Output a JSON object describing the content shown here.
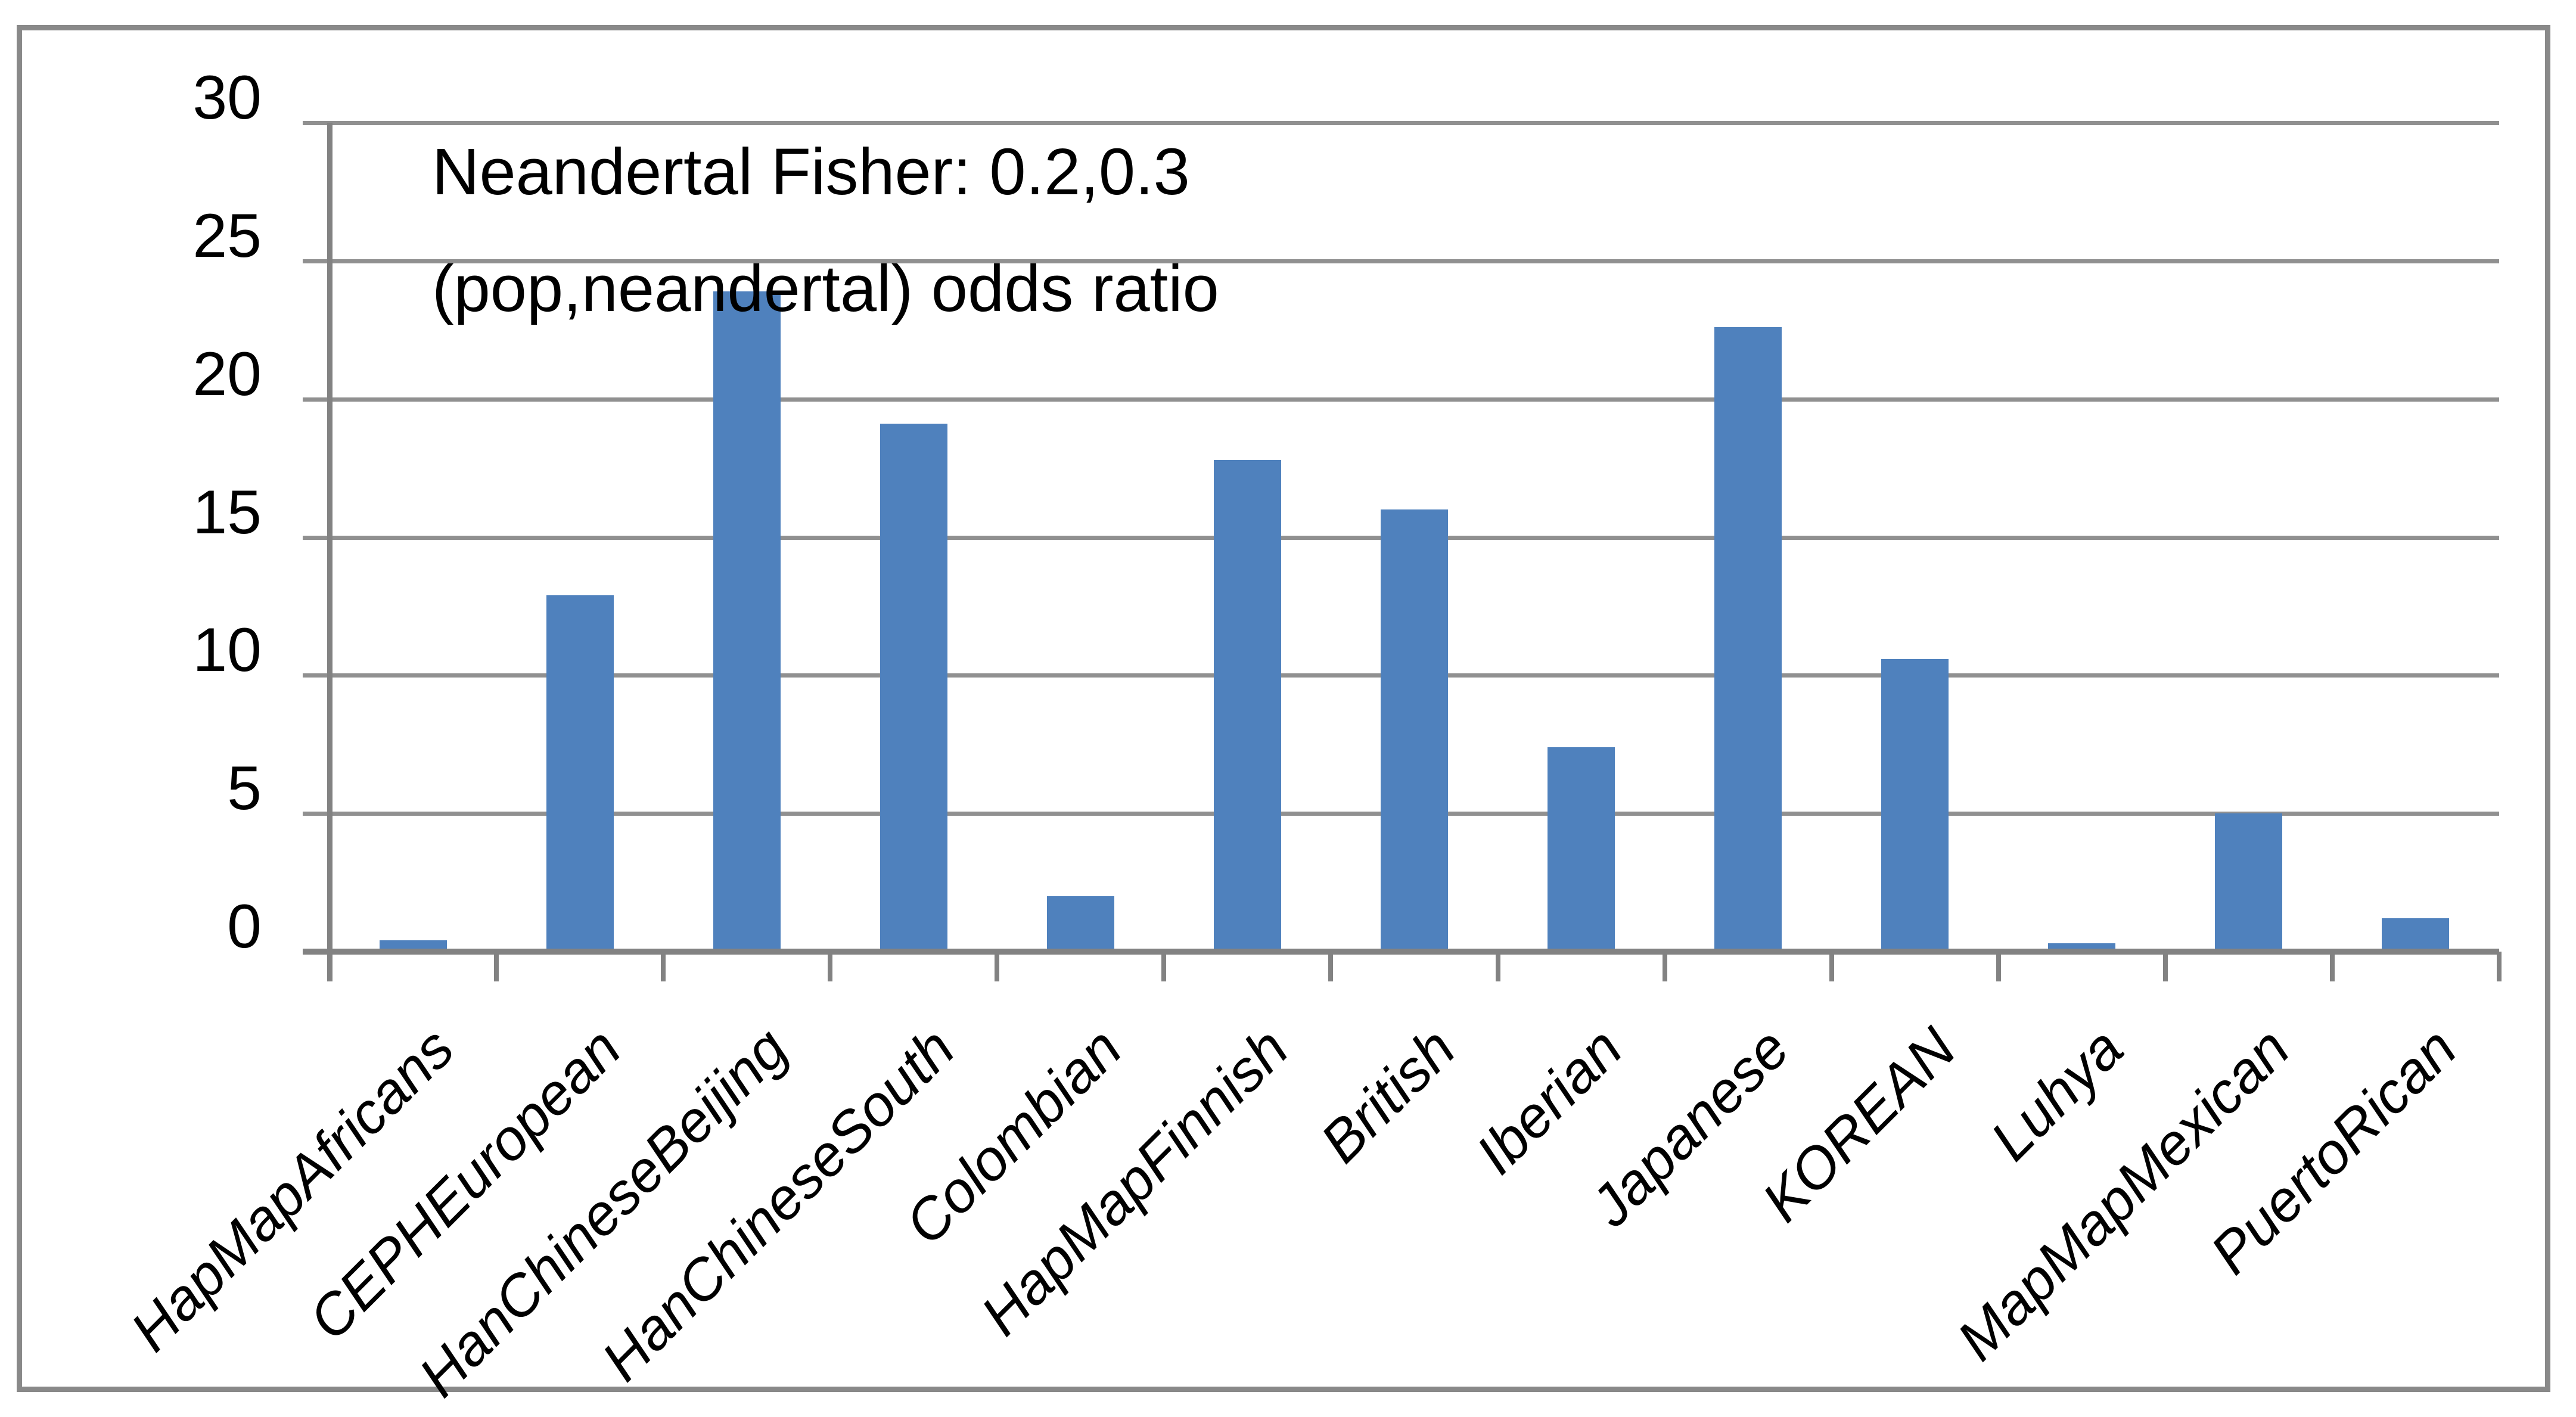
{
  "chart_data": {
    "type": "bar",
    "title_line1": "Neandertal Fisher: 0.2,0.3",
    "title_line2": "(pop,neandertal) odds ratio",
    "categories": [
      "HapMapAfricans",
      "CEPHEuropean",
      "HanChineseBeijing",
      "HanChineseSouth",
      "Colombian",
      "HapMapFinnish",
      "British",
      "Iberian",
      "Japanese",
      "KOREAN",
      "Luhya",
      "MapMapMexican",
      "PuertoRican"
    ],
    "values": [
      0.4,
      12.9,
      23.9,
      19.1,
      2.0,
      17.8,
      16.0,
      7.4,
      22.6,
      10.6,
      0.3,
      5.0,
      1.2
    ],
    "y_tick_labels": [
      "0",
      "5",
      "10",
      "15",
      "20",
      "25",
      "30"
    ],
    "y_tick_values": [
      0,
      5,
      10,
      15,
      20,
      25,
      30
    ],
    "ylim": [
      0,
      30
    ],
    "xlabel": "",
    "ylabel": "",
    "legend_position": "none",
    "grid": "horizontal",
    "bar_color": "#4f81bd",
    "grid_color": "#909090",
    "axis_color": "#828282",
    "frame_color": "#898989",
    "text_color": "#000000"
  }
}
